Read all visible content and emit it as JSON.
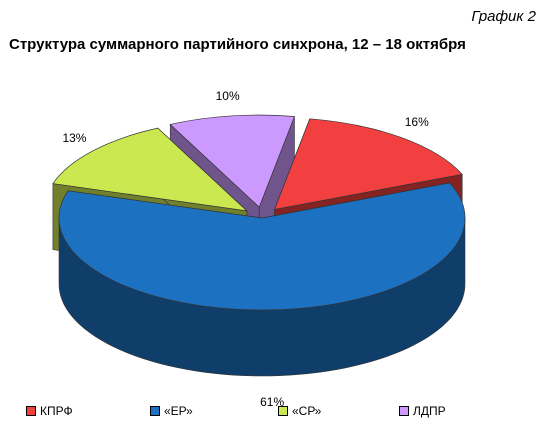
{
  "caption": "График 2",
  "chart_data": {
    "type": "pie",
    "title": "Структура суммарного партийного синхрона, 12 – 18 октября",
    "slices": [
      {
        "label": "КПРФ",
        "value": 16,
        "value_label": "16%",
        "color": "#f24040"
      },
      {
        "label": "«ЕР»",
        "value": 61,
        "value_label": "61%",
        "color": "#1c71c0"
      },
      {
        "label": "«СР»",
        "value": 13,
        "value_label": "13%",
        "color": "#cce850"
      },
      {
        "label": "ЛДПР",
        "value": 10,
        "value_label": "10%",
        "color": "#cc9aff"
      }
    ],
    "legend_position": "bottom"
  }
}
